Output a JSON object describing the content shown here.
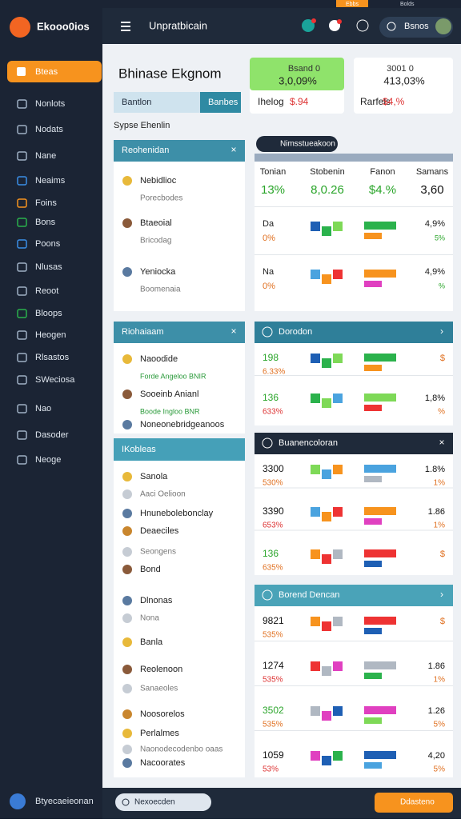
{
  "top_strip": [
    "Ebbs",
    "Bolds"
  ],
  "sidebar": {
    "logo": "Ekooo0ios",
    "active_item": "Bteas",
    "items": [
      "Nonlots",
      "Nodats",
      "Nane",
      "Neaims",
      "Foins",
      "Bons",
      "Poons",
      "Nlusas",
      "Reoot",
      "Bloops",
      "Heogen",
      "Rlsastos",
      "SWeciosa",
      "Nao",
      "Dasoder",
      "Neoge"
    ],
    "user": "Btyecaeieonan"
  },
  "topbar": {
    "title": "Unpratbicain",
    "search": "Bsnos"
  },
  "header": {
    "title": "Bhinase Ekgnom",
    "tabs": [
      "Bantlon",
      "Banbes"
    ],
    "subtitle": "Sypse Ehenlin"
  },
  "stat_cards": [
    {
      "label": "Bsand 0",
      "value": "3,0,09%",
      "note": "Ihelog",
      "note_value": "$.94"
    },
    {
      "label": "3001 0",
      "value": "413,03%",
      "note": "Rarfels",
      "note_value": "$4,%"
    }
  ],
  "left_panels": [
    {
      "title": "Reohenidan",
      "items": [
        {
          "name": "Nebidlioc",
          "sub": "Porecbodes"
        },
        {
          "name": "Btaeoial",
          "sub": "Bricodag"
        },
        {
          "name": "Yeniocka",
          "sub": "Boomenaia"
        }
      ]
    },
    {
      "title": "Riohaiaam",
      "items": [
        {
          "name": "Naoodide",
          "sub": "Forde Angeloo BNIR"
        },
        {
          "name": "Sooeinb Anianl",
          "sub": "Boode Ingloo BNR"
        },
        {
          "name": "Noneonebridgeanoos"
        }
      ]
    },
    {
      "title": "IKobleas",
      "items": [
        "Sanola",
        "Aaci Oelioon",
        "Hnunebolebonclay",
        "Deaeciles",
        "Seongens",
        "Bond",
        "Dlnonas",
        "Nona",
        "Banla",
        "Reolenoon",
        "Sanaeoles",
        "Noosorelos",
        "Perlalmes",
        "Naonodecodenbo oaas",
        "Nacoorates"
      ]
    }
  ],
  "summary": {
    "title": "Nimsstueakoon",
    "columns": [
      "Tonian",
      "Stobenin",
      "Fanon",
      "Samans"
    ],
    "values": [
      "13%",
      "8,0.26",
      "$4.%",
      "3,60"
    ],
    "rows": [
      {
        "value": "Da",
        "pct": "0%",
        "end": "4,9%",
        "end_sub": "5%"
      },
      {
        "value": "Na",
        "pct": "0%",
        "end": "4,9%",
        "end_sub": "%"
      }
    ]
  },
  "right_panels": [
    {
      "title": "Dorodon",
      "rows": [
        {
          "value": "198",
          "pct": "6.33%",
          "end": "$"
        },
        {
          "value": "136",
          "pct": "633%",
          "end": "1,8%",
          "end_sub": "%"
        }
      ]
    },
    {
      "title": "Buanencoloran",
      "rows": [
        {
          "value": "3300",
          "pct": "530%",
          "end": "1.8%",
          "end_sub": "1%"
        },
        {
          "value": "3390",
          "pct": "653%",
          "end": "1.86",
          "end_sub": "1%"
        },
        {
          "value": "136",
          "pct": "635%",
          "end": "$"
        }
      ]
    },
    {
      "title": "Borend Dencan",
      "rows": [
        {
          "value": "9821",
          "pct": "535%",
          "end": "$"
        },
        {
          "value": "1274",
          "pct": "535%",
          "end": "1.86",
          "end_sub": "1%"
        },
        {
          "value": "3502",
          "pct": "535%",
          "end": "1.26",
          "end_sub": "5%"
        },
        {
          "value": "1059",
          "pct": "53%",
          "end": "4,20",
          "end_sub": "5%"
        }
      ]
    }
  ],
  "bottom": {
    "search": "Nexoecden",
    "button": "Ddasteno"
  }
}
